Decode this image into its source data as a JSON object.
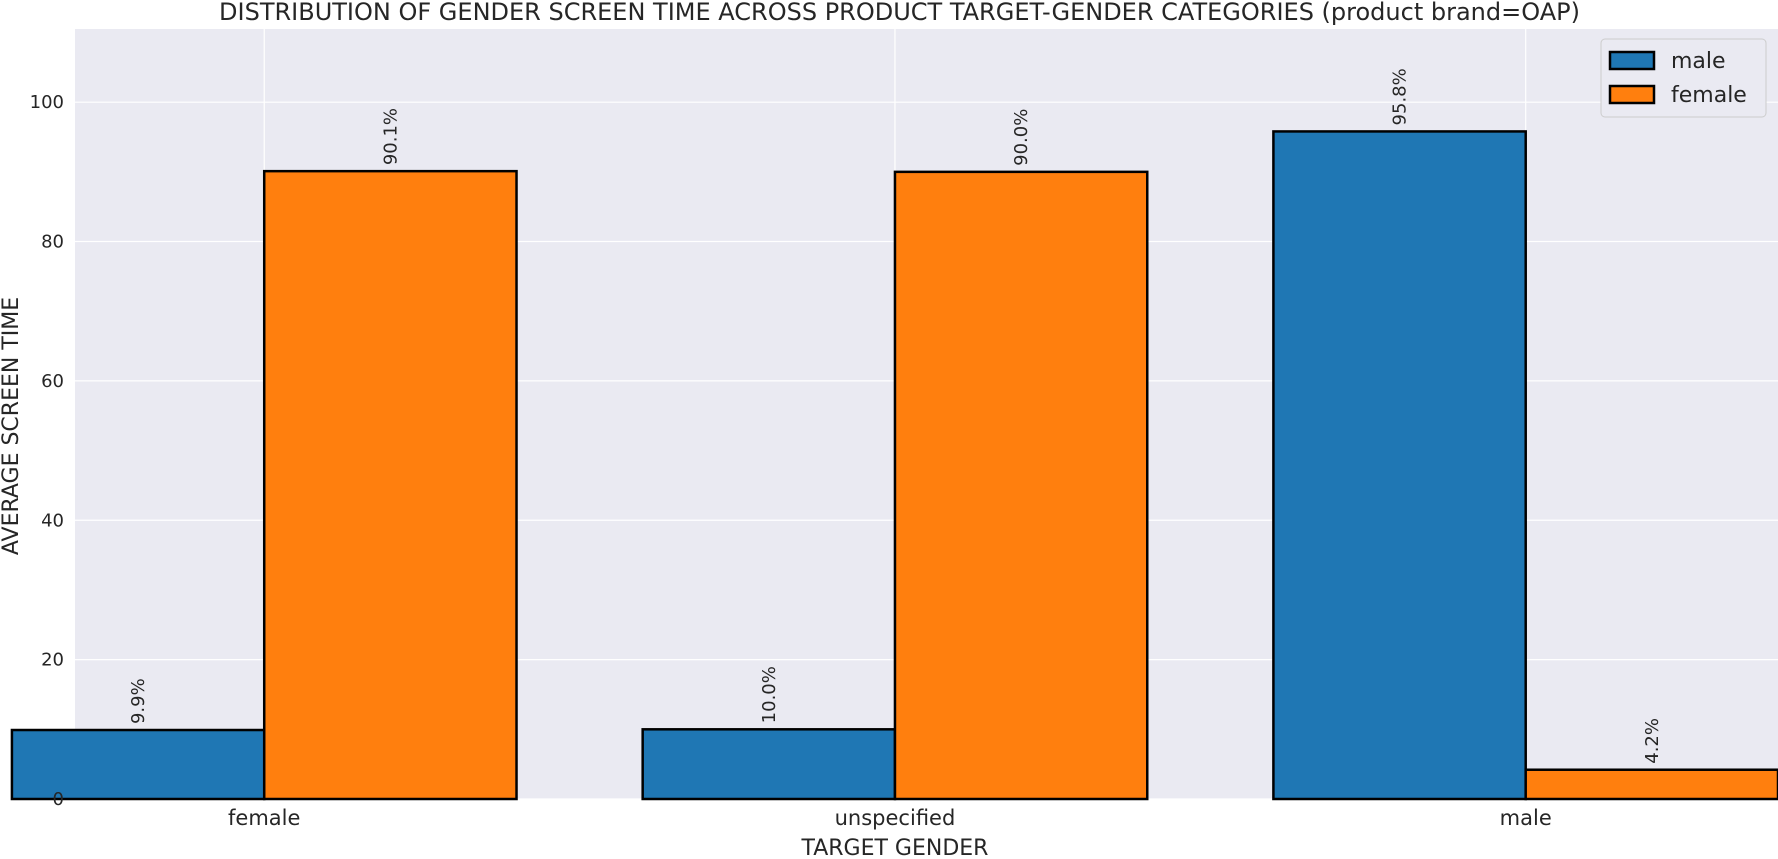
{
  "chart_data": {
    "type": "bar",
    "title": "DISTRIBUTION OF GENDER SCREEN TIME ACROSS PRODUCT TARGET-GENDER CATEGORIES (product brand=OAP)",
    "xlabel": "TARGET GENDER",
    "ylabel": "AVERAGE SCREEN TIME",
    "categories": [
      "female",
      "unspecified",
      "male"
    ],
    "series": [
      {
        "name": "male",
        "color": "#1f77b4",
        "values": [
          9.9,
          10.0,
          95.8
        ],
        "labels": [
          "9.9%",
          "10.0%",
          "95.8%"
        ]
      },
      {
        "name": "female",
        "color": "#ff7f0e",
        "values": [
          90.1,
          90.0,
          4.2
        ],
        "labels": [
          "90.1%",
          "90.0%",
          "4.2%"
        ]
      }
    ],
    "ylim": [
      0,
      110.5
    ],
    "yticks": [
      0,
      20,
      40,
      60,
      80,
      100
    ],
    "grid": true,
    "legend_position": "top-right",
    "background_color": "#eaeaf2"
  }
}
